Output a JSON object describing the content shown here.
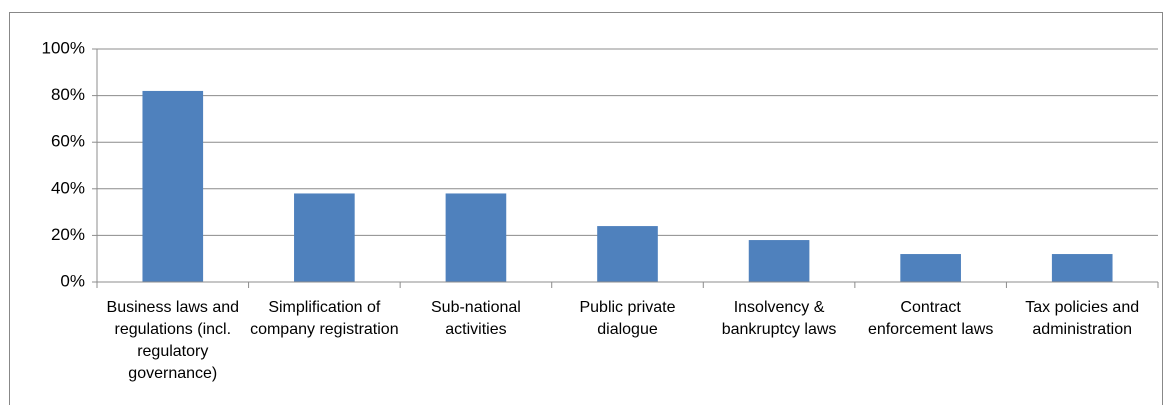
{
  "chart_data": {
    "type": "bar",
    "categories": [
      "Business laws and regulations (incl. regulatory governance)",
      "Simplification of company registration",
      "Sub-national activities",
      "Public private dialogue",
      "Insolvency & bankruptcy laws",
      "Contract enforcement laws",
      "Tax policies and administration"
    ],
    "values": [
      82,
      38,
      38,
      24,
      18,
      12,
      12
    ],
    "color": "#4f81bd",
    "ylim": [
      0,
      100
    ],
    "yticks": [
      {
        "value": 0,
        "label": "0%"
      },
      {
        "value": 20,
        "label": "20%"
      },
      {
        "value": 40,
        "label": "40%"
      },
      {
        "value": 60,
        "label": "60%"
      },
      {
        "value": 80,
        "label": "80%"
      },
      {
        "value": 100,
        "label": "100%"
      }
    ],
    "grid": true
  }
}
